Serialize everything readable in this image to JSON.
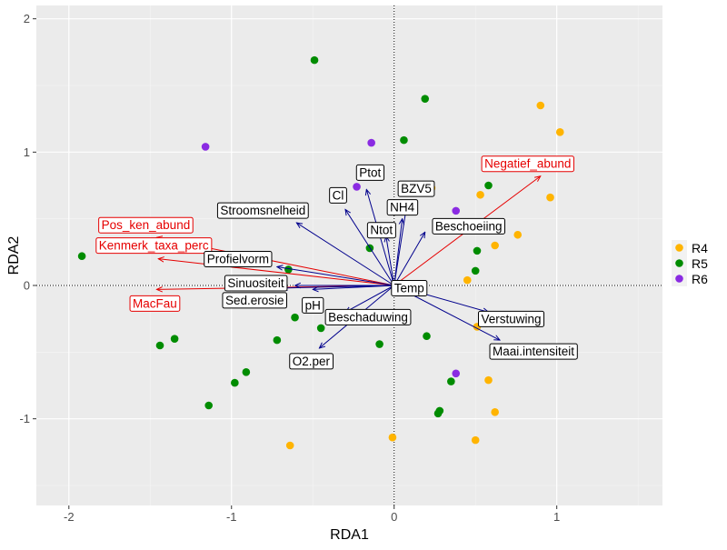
{
  "chart_data": {
    "type": "scatter",
    "title": "",
    "xlabel": "RDA1",
    "ylabel": "RDA2",
    "xlim": [
      -2.2,
      1.65
    ],
    "ylim": [
      -1.65,
      2.1
    ],
    "x_ticks": [
      -2,
      -1,
      0,
      1
    ],
    "y_ticks": [
      -1,
      0,
      1,
      2
    ],
    "tick_labels_x": [
      "-2",
      "-1",
      "0",
      "1"
    ],
    "tick_labels_y": [
      "-1",
      "0",
      "1",
      "2"
    ],
    "grid": true,
    "legend_position": "right",
    "legend_entries": [
      "R4",
      "R5",
      "R6"
    ],
    "series": [
      {
        "name": "R4",
        "color": "#FFB400",
        "points": [
          [
            0.9,
            1.35
          ],
          [
            1.02,
            1.15
          ],
          [
            0.23,
            0.73
          ],
          [
            0.53,
            0.68
          ],
          [
            0.96,
            0.66
          ],
          [
            0.76,
            0.38
          ],
          [
            0.62,
            0.3
          ],
          [
            0.45,
            0.04
          ],
          [
            0.63,
            -0.25
          ],
          [
            0.76,
            -0.26
          ],
          [
            0.51,
            -0.31
          ],
          [
            0.58,
            -0.71
          ],
          [
            0.62,
            -0.95
          ],
          [
            0.5,
            -1.16
          ],
          [
            -0.01,
            -1.14
          ],
          [
            -0.64,
            -1.2
          ]
        ]
      },
      {
        "name": "R5",
        "color": "#008C00",
        "points": [
          [
            -0.49,
            1.69
          ],
          [
            0.19,
            1.4
          ],
          [
            0.06,
            1.09
          ],
          [
            0.58,
            0.75
          ],
          [
            -0.15,
            0.28
          ],
          [
            0.51,
            0.26
          ],
          [
            0.5,
            0.11
          ],
          [
            -1.92,
            0.22
          ],
          [
            -0.65,
            0.12
          ],
          [
            -0.61,
            -0.24
          ],
          [
            -0.45,
            -0.32
          ],
          [
            -0.72,
            -0.41
          ],
          [
            0.2,
            -0.38
          ],
          [
            -0.09,
            -0.44
          ],
          [
            -1.35,
            -0.4
          ],
          [
            -1.44,
            -0.45
          ],
          [
            -0.91,
            -0.65
          ],
          [
            -0.98,
            -0.73
          ],
          [
            0.35,
            -0.72
          ],
          [
            0.28,
            -0.94
          ],
          [
            0.27,
            -0.96
          ],
          [
            -1.14,
            -0.9
          ]
        ]
      },
      {
        "name": "R6",
        "color": "#8A2BE2",
        "points": [
          [
            -1.16,
            1.04
          ],
          [
            -0.14,
            1.07
          ],
          [
            -0.23,
            0.74
          ],
          [
            0.38,
            0.56
          ],
          [
            0.38,
            -0.66
          ]
        ]
      }
    ],
    "arrows": [
      {
        "label": "Pos_ken_abund",
        "color": "#E60000",
        "x": -1.46,
        "y": 0.36
      },
      {
        "label": "Kenmerk_taxa_perc",
        "color": "#E60000",
        "x": -1.45,
        "y": 0.2
      },
      {
        "label": "MacFau",
        "color": "#E60000",
        "x": -1.46,
        "y": -0.03
      },
      {
        "label": "Negatief_abund",
        "color": "#E60000",
        "x": 0.9,
        "y": 0.82
      },
      {
        "label": "Ptot",
        "color": "#00008C",
        "x": -0.17,
        "y": 0.72
      },
      {
        "label": "BZV5",
        "color": "#00008C",
        "x": 0.08,
        "y": 0.62
      },
      {
        "label": "Cl",
        "color": "#00008C",
        "x": -0.3,
        "y": 0.57
      },
      {
        "label": "NH4",
        "color": "#00008C",
        "x": 0.05,
        "y": 0.5
      },
      {
        "label": "Ntot",
        "color": "#00008C",
        "x": -0.05,
        "y": 0.37
      },
      {
        "label": "Beschoeiing",
        "color": "#00008C",
        "x": 0.19,
        "y": 0.4
      },
      {
        "label": "Stroomsnelheid",
        "color": "#00008C",
        "x": -0.6,
        "y": 0.47
      },
      {
        "label": "Profielvorm",
        "color": "#00008C",
        "x": -0.72,
        "y": 0.14
      },
      {
        "label": "Sinuositeit",
        "color": "#00008C",
        "x": -0.61,
        "y": 0.0
      },
      {
        "label": "Sed.erosie",
        "color": "#00008C",
        "x": -0.69,
        "y": -0.02
      },
      {
        "label": "pH",
        "color": "#00008C",
        "x": -0.5,
        "y": -0.03
      },
      {
        "label": "Beschaduwing",
        "color": "#00008C",
        "x": -0.3,
        "y": -0.2
      },
      {
        "label": "O2.per",
        "color": "#00008C",
        "x": -0.46,
        "y": -0.47
      },
      {
        "label": "Temp",
        "color": "#00008C",
        "x": 0.02,
        "y": -0.01
      },
      {
        "label": "Verstuwing",
        "color": "#00008C",
        "x": 0.58,
        "y": -0.2
      },
      {
        "label": "Maai.intensiteit",
        "color": "#00008C",
        "x": 0.65,
        "y": -0.41
      }
    ]
  }
}
